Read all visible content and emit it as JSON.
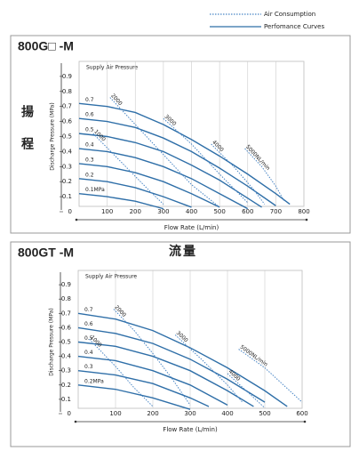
{
  "legend": [
    {
      "label": "Air Consumption",
      "style": "dotted",
      "color": "#4a86c5"
    },
    {
      "label": "Perfomance Curves",
      "style": "solid",
      "color": "#2f6fa8"
    }
  ],
  "annotations": {
    "head": "揚程",
    "flow": "流量"
  },
  "chart_data": [
    {
      "type": "line",
      "title": "800G□ -M",
      "subtitle": "Supply Air Pressure",
      "x_label": "Flow Rate (L/min)",
      "y_label": "Discharge Pressure (MPa)",
      "xlim": [
        0,
        800
      ],
      "ylim": [
        0,
        1
      ],
      "xticks": [
        100,
        200,
        300,
        400,
        500,
        600,
        700,
        800
      ],
      "yticks": [
        0,
        0.1,
        0.2,
        0.3,
        0.4,
        0.5,
        0.6,
        0.7,
        0.8,
        0.9
      ],
      "grid": true,
      "series": [
        {
          "name": "0.7",
          "style": "solid",
          "color": "#2f6fa8",
          "x": [
            0,
            100,
            200,
            300,
            400,
            500,
            600,
            700,
            750
          ],
          "values": [
            0.72,
            0.7,
            0.66,
            0.58,
            0.48,
            0.37,
            0.25,
            0.12,
            0.05
          ]
        },
        {
          "name": "0.6",
          "style": "solid",
          "color": "#2f6fa8",
          "x": [
            0,
            100,
            200,
            300,
            400,
            500,
            600,
            700
          ],
          "values": [
            0.62,
            0.6,
            0.56,
            0.49,
            0.4,
            0.29,
            0.17,
            0.04
          ]
        },
        {
          "name": "0.5",
          "style": "solid",
          "color": "#2f6fa8",
          "x": [
            0,
            100,
            200,
            300,
            400,
            500,
            600,
            650
          ],
          "values": [
            0.52,
            0.5,
            0.46,
            0.4,
            0.31,
            0.21,
            0.09,
            0.03
          ]
        },
        {
          "name": "0.4",
          "style": "solid",
          "color": "#2f6fa8",
          "x": [
            0,
            100,
            200,
            300,
            400,
            500,
            600
          ],
          "values": [
            0.42,
            0.4,
            0.36,
            0.3,
            0.22,
            0.12,
            0.02
          ]
        },
        {
          "name": "0.3",
          "style": "solid",
          "color": "#2f6fa8",
          "x": [
            0,
            100,
            200,
            300,
            400,
            500
          ],
          "values": [
            0.32,
            0.3,
            0.26,
            0.2,
            0.12,
            0.03
          ]
        },
        {
          "name": "0.2",
          "style": "solid",
          "color": "#2f6fa8",
          "x": [
            0,
            100,
            200,
            300,
            400
          ],
          "values": [
            0.22,
            0.2,
            0.16,
            0.1,
            0.03
          ]
        },
        {
          "name": "0.1MPa",
          "style": "solid",
          "color": "#2f6fa8",
          "x": [
            0,
            100,
            200,
            300
          ],
          "values": [
            0.12,
            0.1,
            0.07,
            0.02
          ]
        },
        {
          "name": "1000",
          "style": "dotted",
          "color": "#4a86c5",
          "x": [
            50,
            150,
            250,
            300
          ],
          "values": [
            0.52,
            0.33,
            0.14,
            0.05
          ]
        },
        {
          "name": "2000",
          "style": "dotted",
          "color": "#4a86c5",
          "x": [
            110,
            200,
            300,
            400,
            500
          ],
          "values": [
            0.76,
            0.58,
            0.38,
            0.18,
            0.03
          ]
        },
        {
          "name": "3000",
          "style": "dotted",
          "color": "#4a86c5",
          "x": [
            300,
            400,
            500,
            600
          ],
          "values": [
            0.62,
            0.45,
            0.25,
            0.06
          ]
        },
        {
          "name": "4000",
          "style": "dotted",
          "color": "#4a86c5",
          "x": [
            470,
            550,
            620,
            660
          ],
          "values": [
            0.45,
            0.3,
            0.15,
            0.05
          ]
        },
        {
          "name": "5000NL/min",
          "style": "dotted",
          "color": "#4a86c5",
          "x": [
            590,
            650,
            700,
            730
          ],
          "values": [
            0.42,
            0.3,
            0.17,
            0.07
          ]
        }
      ]
    },
    {
      "type": "line",
      "title": "800GT -M",
      "subtitle": "Supply Air Pressure",
      "x_label": "Flow Rate (L/min)",
      "y_label": "Discharge Pressure (MPa)",
      "xlim": [
        0,
        600
      ],
      "ylim": [
        0,
        1
      ],
      "xticks": [
        100,
        200,
        300,
        400,
        500,
        600
      ],
      "yticks": [
        0,
        0.1,
        0.2,
        0.3,
        0.4,
        0.5,
        0.6,
        0.7,
        0.8,
        0.9
      ],
      "grid": true,
      "series": [
        {
          "name": "0.7",
          "style": "solid",
          "color": "#2f6fa8",
          "x": [
            0,
            100,
            200,
            300,
            400,
            500,
            560
          ],
          "values": [
            0.7,
            0.66,
            0.58,
            0.46,
            0.32,
            0.16,
            0.05
          ]
        },
        {
          "name": "0.6",
          "style": "solid",
          "color": "#2f6fa8",
          "x": [
            0,
            100,
            200,
            300,
            400,
            500
          ],
          "values": [
            0.6,
            0.56,
            0.49,
            0.38,
            0.24,
            0.08
          ]
        },
        {
          "name": "0.5",
          "style": "solid",
          "color": "#2f6fa8",
          "x": [
            0,
            100,
            200,
            300,
            400,
            470
          ],
          "values": [
            0.5,
            0.47,
            0.4,
            0.3,
            0.16,
            0.05
          ]
        },
        {
          "name": "0.4",
          "style": "solid",
          "color": "#2f6fa8",
          "x": [
            0,
            100,
            200,
            300,
            400
          ],
          "values": [
            0.4,
            0.37,
            0.3,
            0.2,
            0.06
          ]
        },
        {
          "name": "0.3",
          "style": "solid",
          "color": "#2f6fa8",
          "x": [
            0,
            100,
            200,
            300,
            350
          ],
          "values": [
            0.3,
            0.27,
            0.21,
            0.11,
            0.05
          ]
        },
        {
          "name": "0.2MPa",
          "style": "solid",
          "color": "#2f6fa8",
          "x": [
            0,
            100,
            200,
            300
          ],
          "values": [
            0.2,
            0.17,
            0.11,
            0.03
          ]
        },
        {
          "name": "1000",
          "style": "dotted",
          "color": "#4a86c5",
          "x": [
            30,
            100,
            150,
            200
          ],
          "values": [
            0.52,
            0.33,
            0.18,
            0.05
          ]
        },
        {
          "name": "2000",
          "style": "dotted",
          "color": "#4a86c5",
          "x": [
            95,
            150,
            200,
            250,
            300
          ],
          "values": [
            0.73,
            0.58,
            0.42,
            0.25,
            0.06
          ]
        },
        {
          "name": "3000",
          "style": "dotted",
          "color": "#4a86c5",
          "x": [
            260,
            330,
            400,
            440
          ],
          "values": [
            0.55,
            0.38,
            0.2,
            0.08
          ]
        },
        {
          "name": "4000",
          "style": "dotted",
          "color": "#4a86c5",
          "x": [
            400,
            450,
            500
          ],
          "values": [
            0.28,
            0.16,
            0.04
          ]
        },
        {
          "name": "5000NL/min",
          "style": "dotted",
          "color": "#4a86c5",
          "x": [
            430,
            500,
            550,
            600
          ],
          "values": [
            0.45,
            0.32,
            0.2,
            0.08
          ]
        }
      ]
    }
  ]
}
